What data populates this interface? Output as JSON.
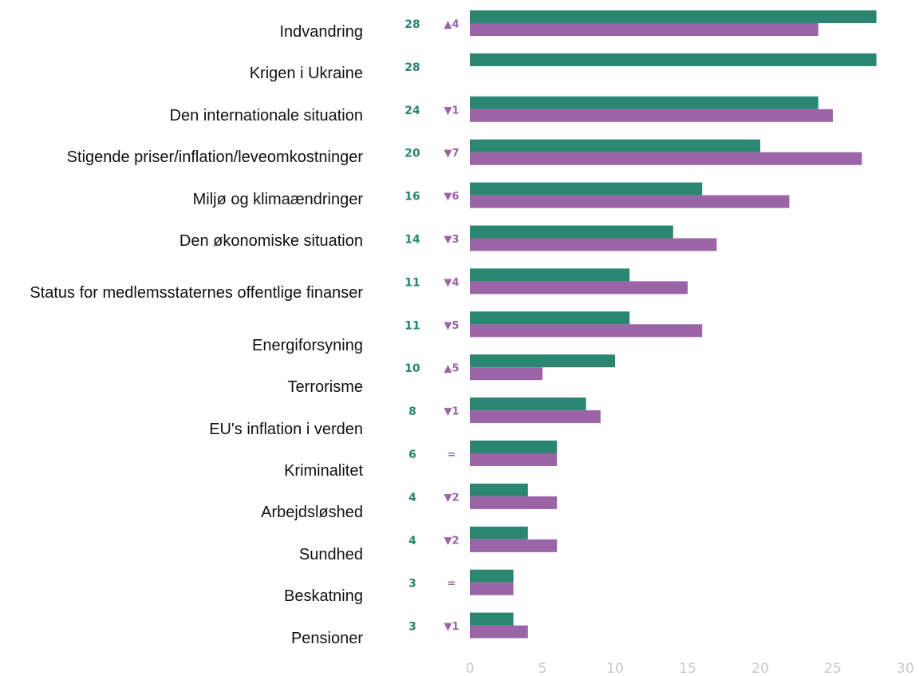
{
  "chart_data": {
    "type": "bar",
    "orientation": "horizontal",
    "categories": [
      "Indvandring",
      "Krigen i Ukraine",
      "Den internationale situation",
      "Stigende priser/inflation/leveomkostninger",
      "Miljø og klimaændringer",
      "Den økonomiske situation",
      "Status for medlemsstaternes offentlige finanser",
      "Energiforsyning",
      "Terrorisme",
      "EU's inflation i verden",
      "Kriminalitet",
      "Arbejdsløshed",
      "Sundhed",
      "Beskatning",
      "Pensioner"
    ],
    "series": [
      {
        "color": "#2a8670",
        "values": [
          28,
          28,
          24,
          20,
          16,
          14,
          11,
          11,
          10,
          8,
          6,
          4,
          4,
          3,
          3
        ]
      },
      {
        "color": "#9a64a6",
        "values": [
          24,
          null,
          25,
          27,
          22,
          17,
          15,
          16,
          5,
          9,
          6,
          6,
          6,
          3,
          4
        ]
      }
    ],
    "change_labels": [
      "▲4",
      null,
      "▼1",
      "▼7",
      "▼6",
      "▼3",
      "▼4",
      "▼5",
      "▲5",
      "▼1",
      "=",
      "▼2",
      "▼2",
      "=",
      "▼1"
    ],
    "xlim": [
      0,
      30
    ],
    "xticks": [
      0,
      5,
      10,
      15,
      20,
      25,
      30
    ]
  }
}
